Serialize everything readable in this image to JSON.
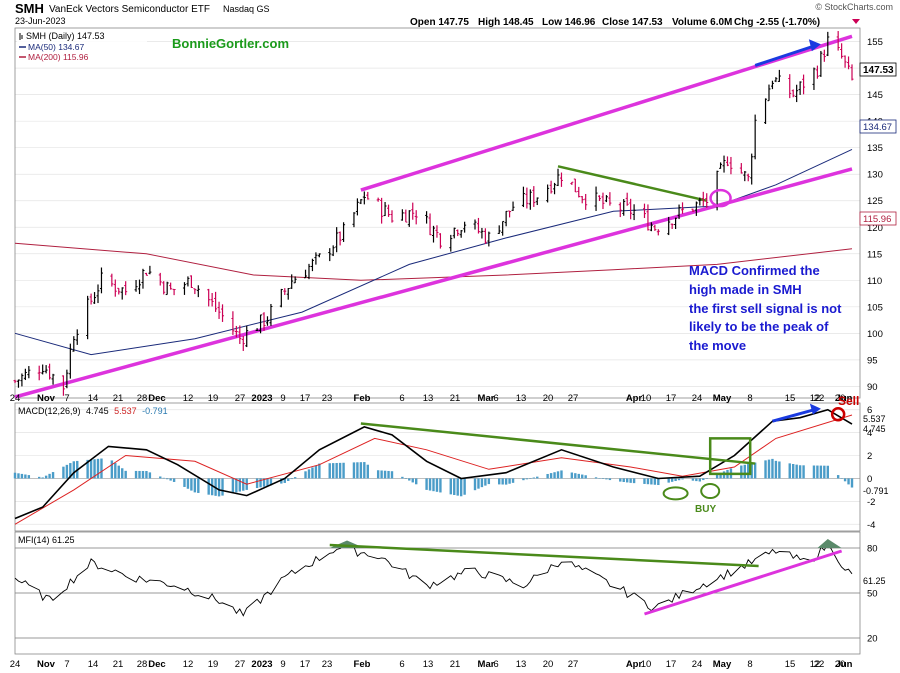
{
  "header": {
    "symbol": "SMH",
    "name": "VanEck Vectors Semiconductor ETF",
    "exchange": "Nasdaq GS",
    "date": "23-Jun-2023",
    "open": "Open 147.75",
    "high": "High 148.45",
    "low": "Low 146.96",
    "close": "Close 147.53",
    "volume": "Volume 6.0M",
    "chg": "Chg -2.55 (-1.70%)",
    "credit": "© StockCharts.com"
  },
  "watermark": "BonnieGortler.com",
  "legend": {
    "price": "SMH (Daily) 147.53",
    "ma50": "MA(50) 134.67",
    "ma200": "MA(200) 115.96"
  },
  "annotation": {
    "line1": "MACD Confirmed the",
    "line2": "high made in SMH",
    "line3": "the first sell signal is not",
    "line4": "likely to be the peak of",
    "line5": "the move"
  },
  "labels": {
    "sell": "Sell",
    "buy": "BUY"
  },
  "tags": {
    "last": "147.53",
    "ma50": "134.67",
    "ma200": "115.96",
    "macd1": "5.537",
    "macd2": "4.745",
    "hist": "-0.791",
    "mfi": "61.25"
  },
  "macd_legend": {
    "name": "MACD(12,26,9)",
    "v1": "4.745",
    "v2": "5.537",
    "v3": "-0.791"
  },
  "mfi_legend": "MFI(14) 61.25",
  "colors": {
    "up": "#000000",
    "down": "#cc0055",
    "ma50": "#1a2a7a",
    "ma200": "#b02040",
    "channel": "#dd33dd",
    "trend": "#4a8a1a",
    "hist": "#4a9cc8",
    "annotation": "#1a1ad0",
    "watermark": "#1a9a1a",
    "sell": "#cc0000"
  },
  "chart_data": [
    {
      "type": "line",
      "title": "SMH (Daily) 147.53",
      "series_note": "daily OHLC bars with 50- and 200-day moving averages",
      "ylim": [
        88,
        157
      ],
      "y_ticks": [
        "90",
        "95",
        "100",
        "105",
        "110",
        "115",
        "120",
        "125",
        "130",
        "135",
        "140",
        "145",
        "150",
        "155"
      ],
      "x_ticks": [
        "24",
        "Nov",
        "7",
        "14",
        "21",
        "28",
        "Dec",
        "12",
        "19",
        "27",
        "2023",
        "9",
        "17",
        "23",
        "Feb",
        "6",
        "13",
        "21",
        "Mar",
        "6",
        "13",
        "20",
        "27",
        "Apr",
        "10",
        "17",
        "24",
        "May",
        "8",
        "15",
        "22",
        "Jun",
        "12",
        "20"
      ],
      "close_path": [
        [
          "2022-10-24",
          91
        ],
        [
          "2022-11-01",
          94
        ],
        [
          "2022-11-07",
          90
        ],
        [
          "2022-11-10",
          100
        ],
        [
          "2022-11-18",
          110
        ],
        [
          "2022-11-25",
          108
        ],
        [
          "2022-12-01",
          112
        ],
        [
          "2022-12-08",
          108
        ],
        [
          "2022-12-14",
          110
        ],
        [
          "2022-12-22",
          104
        ],
        [
          "2022-12-28",
          99
        ],
        [
          "2023-01-05",
          103
        ],
        [
          "2023-01-12",
          110
        ],
        [
          "2023-01-20",
          114
        ],
        [
          "2023-01-27",
          119
        ],
        [
          "2023-02-02",
          126
        ],
        [
          "2023-02-10",
          122
        ],
        [
          "2023-02-17",
          123
        ],
        [
          "2023-02-24",
          118
        ],
        [
          "2023-03-03",
          121
        ],
        [
          "2023-03-10",
          118
        ],
        [
          "2023-03-17",
          124
        ],
        [
          "2023-03-24",
          126
        ],
        [
          "2023-03-31",
          130
        ],
        [
          "2023-04-06",
          126
        ],
        [
          "2023-04-14",
          124
        ],
        [
          "2023-04-21",
          123
        ],
        [
          "2023-04-27",
          120
        ],
        [
          "2023-05-05",
          123
        ],
        [
          "2023-05-12",
          125
        ],
        [
          "2023-05-18",
          133
        ],
        [
          "2023-05-24",
          129
        ],
        [
          "2023-05-26",
          140
        ],
        [
          "2023-05-31",
          148
        ],
        [
          "2023-06-06",
          145
        ],
        [
          "2023-06-13",
          150
        ],
        [
          "2023-06-16",
          155
        ],
        [
          "2023-06-20",
          152
        ],
        [
          "2023-06-23",
          147.53
        ]
      ],
      "ma50": [
        [
          "2022-10-24",
          100
        ],
        [
          "2022-11-15",
          96
        ],
        [
          "2022-12-15",
          99
        ],
        [
          "2023-01-15",
          104
        ],
        [
          "2023-02-15",
          113
        ],
        [
          "2023-03-15",
          118
        ],
        [
          "2023-04-15",
          123
        ],
        [
          "2023-05-15",
          124
        ],
        [
          "2023-06-01",
          128
        ],
        [
          "2023-06-23",
          134.67
        ]
      ],
      "ma200": [
        [
          "2022-10-24",
          117
        ],
        [
          "2022-12-01",
          115
        ],
        [
          "2023-01-01",
          111
        ],
        [
          "2023-02-01",
          110
        ],
        [
          "2023-03-15",
          111
        ],
        [
          "2023-04-15",
          112
        ],
        [
          "2023-05-15",
          113
        ],
        [
          "2023-06-23",
          115.96
        ]
      ],
      "upper_channel": [
        [
          "2023-02-01",
          127
        ],
        [
          "2023-06-23",
          156
        ]
      ],
      "lower_channel": [
        [
          "2022-10-24",
          88
        ],
        [
          "2023-06-23",
          131
        ]
      ],
      "downtrend_line": [
        [
          "2023-03-30",
          131.5
        ],
        [
          "2023-05-12",
          125
        ]
      ]
    },
    {
      "type": "line",
      "title": "MACD(12,26,9) 4.745, 5.537, -0.791",
      "ylim": [
        -4.5,
        6.5
      ],
      "y_ticks": [
        "6",
        "4",
        "2",
        "0",
        "-2",
        "-4"
      ],
      "macd": [
        [
          "2022-10-24",
          -3.5
        ],
        [
          "2022-11-01",
          -2.5
        ],
        [
          "2022-11-10",
          0.5
        ],
        [
          "2022-11-20",
          2.8
        ],
        [
          "2022-12-01",
          2.5
        ],
        [
          "2022-12-10",
          1.2
        ],
        [
          "2022-12-22",
          -1
        ],
        [
          "2022-12-30",
          -1.5
        ],
        [
          "2023-01-10",
          0
        ],
        [
          "2023-01-20",
          2.5
        ],
        [
          "2023-02-02",
          4.5
        ],
        [
          "2023-02-10",
          3.8
        ],
        [
          "2023-02-20",
          1.5
        ],
        [
          "2023-03-02",
          0
        ],
        [
          "2023-03-15",
          0.5
        ],
        [
          "2023-03-31",
          2.5
        ],
        [
          "2023-04-15",
          1
        ],
        [
          "2023-04-28",
          0
        ],
        [
          "2023-05-10",
          0.2
        ],
        [
          "2023-05-20",
          2
        ],
        [
          "2023-05-31",
          5
        ],
        [
          "2023-06-08",
          5.3
        ],
        [
          "2023-06-16",
          6
        ],
        [
          "2023-06-23",
          4.745
        ]
      ],
      "signal": [
        [
          "2022-10-24",
          -4
        ],
        [
          "2022-11-10",
          -1
        ],
        [
          "2022-11-25",
          2
        ],
        [
          "2022-12-15",
          1.5
        ],
        [
          "2022-12-30",
          -0.5
        ],
        [
          "2023-01-20",
          1.2
        ],
        [
          "2023-02-05",
          3.5
        ],
        [
          "2023-02-20",
          2.5
        ],
        [
          "2023-03-10",
          0.8
        ],
        [
          "2023-03-31",
          1.8
        ],
        [
          "2023-04-20",
          1
        ],
        [
          "2023-05-05",
          0.2
        ],
        [
          "2023-05-20",
          1
        ],
        [
          "2023-06-01",
          3.5
        ],
        [
          "2023-06-23",
          5.537
        ]
      ],
      "histogram_last": -0.791
    },
    {
      "type": "line",
      "title": "MFI(14) 61.25",
      "ylim": [
        10,
        90
      ],
      "y_ticks": [
        "80",
        "50",
        "20"
      ],
      "mfi": [
        [
          "2022-10-24",
          60
        ],
        [
          "2022-11-03",
          45
        ],
        [
          "2022-11-15",
          70
        ],
        [
          "2022-11-28",
          60
        ],
        [
          "2022-12-10",
          55
        ],
        [
          "2022-12-22",
          45
        ],
        [
          "2022-12-29",
          35
        ],
        [
          "2023-01-10",
          60
        ],
        [
          "2023-01-25",
          80
        ],
        [
          "2023-02-06",
          75
        ],
        [
          "2023-02-20",
          55
        ],
        [
          "2023-03-05",
          65
        ],
        [
          "2023-03-20",
          55
        ],
        [
          "2023-03-31",
          72
        ],
        [
          "2023-04-15",
          55
        ],
        [
          "2023-04-27",
          40
        ],
        [
          "2023-05-10",
          55
        ],
        [
          "2023-05-20",
          65
        ],
        [
          "2023-06-01",
          78
        ],
        [
          "2023-06-10",
          70
        ],
        [
          "2023-06-16",
          82
        ],
        [
          "2023-06-23",
          61.25
        ]
      ]
    }
  ]
}
